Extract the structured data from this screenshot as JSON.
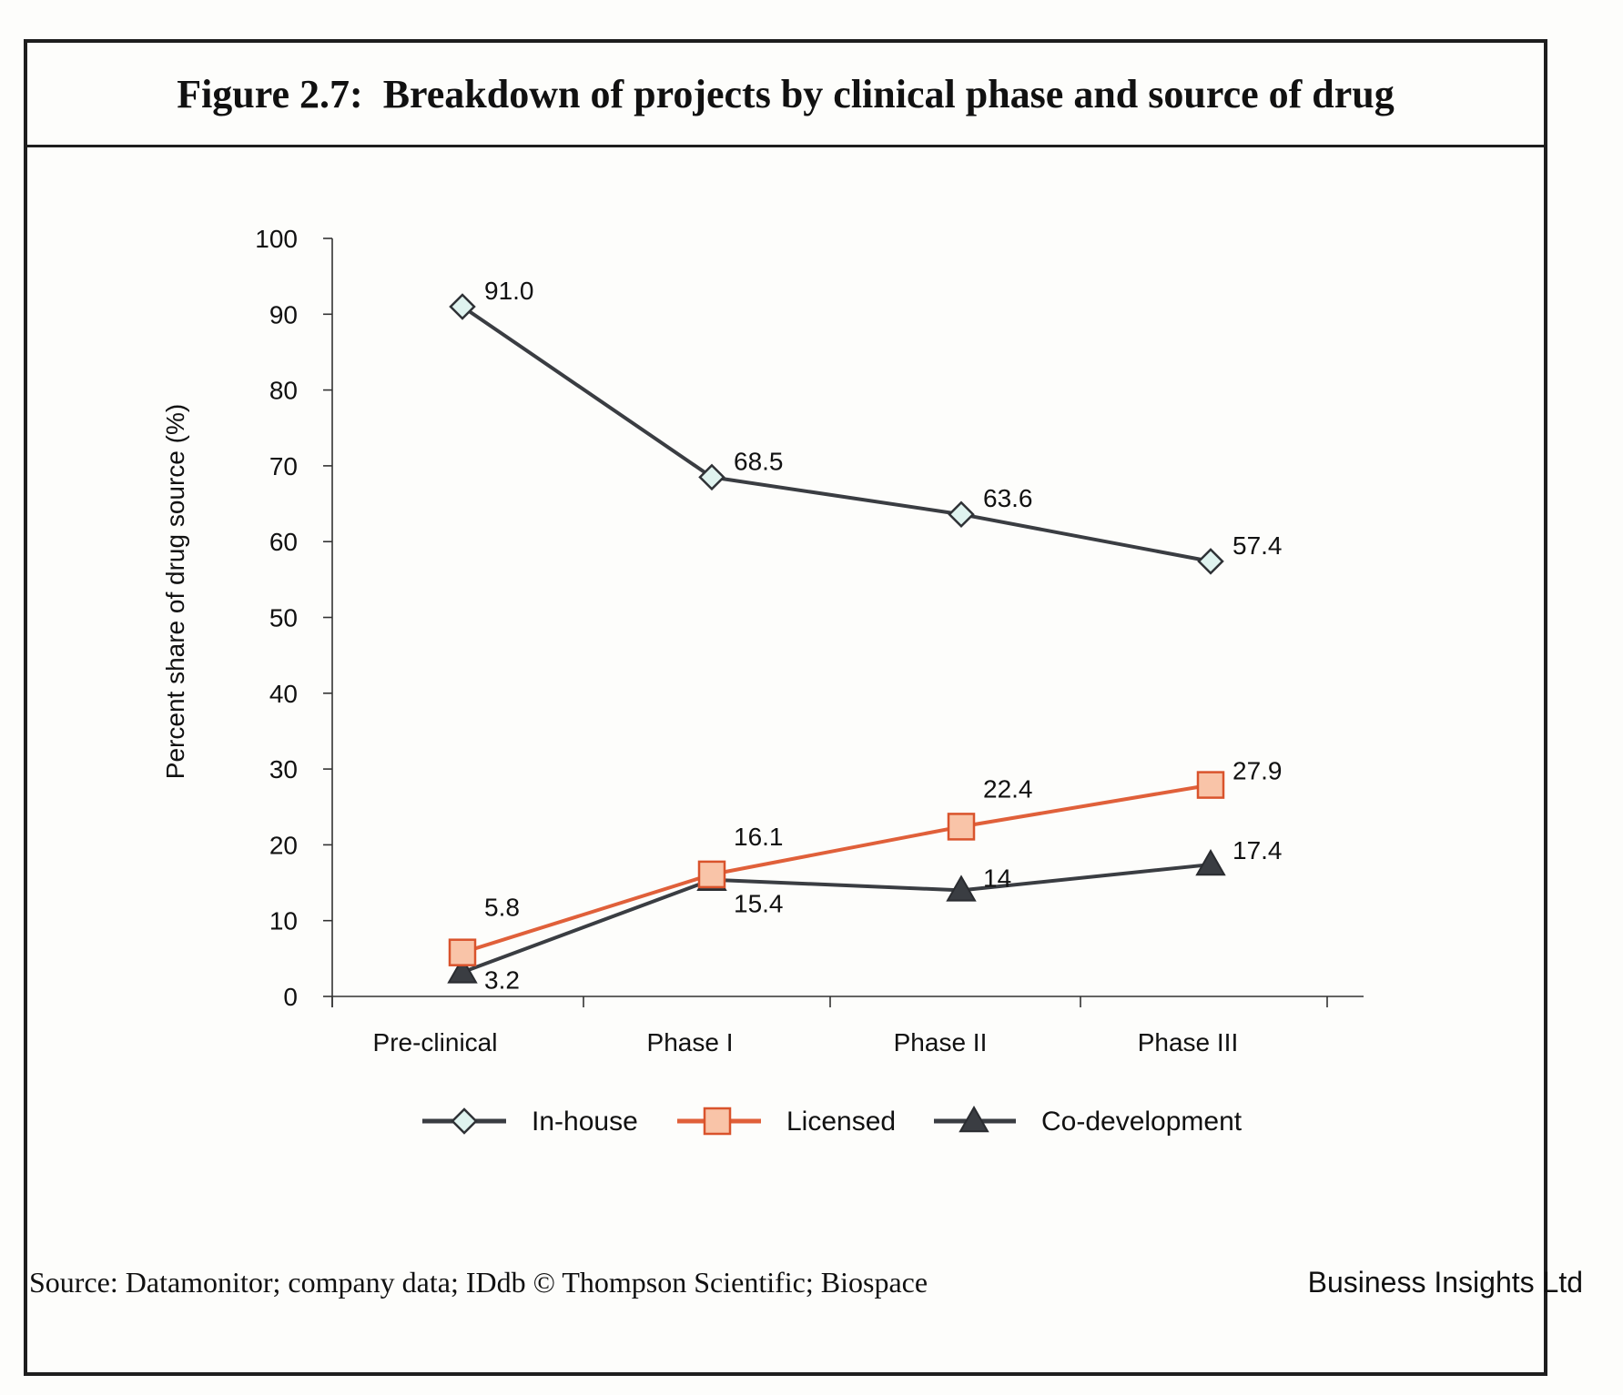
{
  "figure": {
    "title": "Figure 2.7:  Breakdown of projects by clinical phase and source of drug",
    "source": "Source: Datamonitor; company data; IDdb © Thompson Scientific; Biospace",
    "publisher": "Business Insights Ltd"
  },
  "chart_data": {
    "type": "line",
    "categories": [
      "Pre-clinical",
      "Phase I",
      "Phase II",
      "Phase III"
    ],
    "ylabel": "Percent share of drug source (%)",
    "xlabel": "",
    "ylim": [
      0,
      100
    ],
    "yticks": [
      0,
      10,
      20,
      30,
      40,
      50,
      60,
      70,
      80,
      90,
      100
    ],
    "grid": false,
    "legend_position": "bottom",
    "series": [
      {
        "name": "In-house",
        "values": [
          91.0,
          68.5,
          63.6,
          57.4
        ],
        "labels": [
          "91.0",
          "68.5",
          "63.6",
          "57.4"
        ],
        "marker": "diamond",
        "line_color": "#3a3d42",
        "marker_fill": "#dff3ef",
        "marker_stroke": "#2f3236"
      },
      {
        "name": "Licensed",
        "values": [
          5.8,
          16.1,
          22.4,
          27.9
        ],
        "labels": [
          "5.8",
          "16.1",
          "22.4",
          "27.9"
        ],
        "marker": "square",
        "line_color": "#e0603a",
        "marker_fill": "#f9c4a8",
        "marker_stroke": "#d9532c"
      },
      {
        "name": "Co-development",
        "values": [
          3.2,
          15.4,
          14,
          17.4
        ],
        "labels": [
          "3.2",
          "15.4",
          "14",
          "17.4"
        ],
        "marker": "triangle",
        "line_color": "#3a3d42",
        "marker_fill": "#3a3d42",
        "marker_stroke": "#2a2c30"
      }
    ]
  }
}
